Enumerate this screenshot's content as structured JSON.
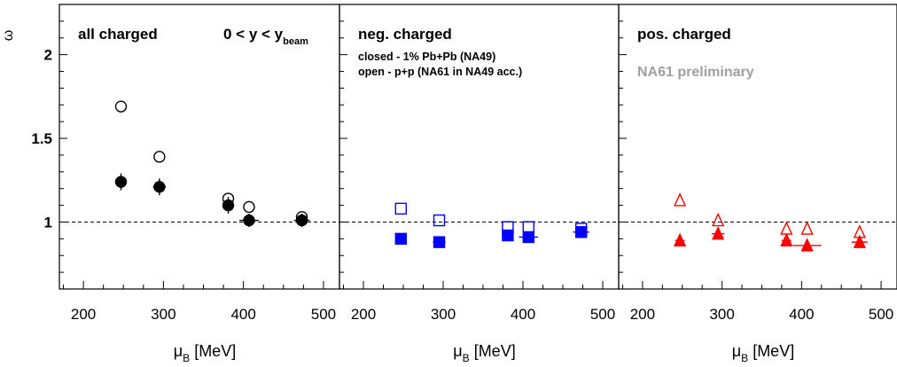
{
  "figure": {
    "y_axis_label": "ω",
    "colors": {
      "black": "#000000",
      "blue": "#0000ff",
      "red": "#ff0000",
      "gray": "#a0a0a0"
    }
  },
  "chart_data": [
    {
      "type": "scatter",
      "title": "all charged",
      "annotation": {
        "main": "0 < y < y",
        "sub": "beam"
      },
      "xlabel": {
        "main": "μ",
        "sub": "B",
        "unit": " [MeV]"
      },
      "ylabel": "ω",
      "xlim": [
        170,
        520
      ],
      "ylim": [
        0.6,
        2.3
      ],
      "xticks": [
        200,
        300,
        400,
        500
      ],
      "yticks": [
        1,
        1.5,
        2
      ],
      "reference_line": 1,
      "marker": "circle",
      "color": "#000000",
      "series": [
        {
          "filled": true,
          "points": [
            {
              "x": 247,
              "y": 1.24,
              "xerr": 6,
              "yerr": 0.05
            },
            {
              "x": 295,
              "y": 1.21,
              "xerr": 8,
              "yerr": 0.05
            },
            {
              "x": 381,
              "y": 1.1,
              "xerr": 4,
              "yerr": 0.05
            },
            {
              "x": 407,
              "y": 1.01,
              "xerr": 12,
              "yerr": 0.04
            },
            {
              "x": 473,
              "y": 1.01,
              "xerr": 10,
              "yerr": 0.04
            }
          ]
        },
        {
          "filled": false,
          "points": [
            {
              "x": 247,
              "y": 1.69
            },
            {
              "x": 295,
              "y": 1.39
            },
            {
              "x": 381,
              "y": 1.14
            },
            {
              "x": 407,
              "y": 1.09
            },
            {
              "x": 473,
              "y": 1.03
            }
          ]
        }
      ]
    },
    {
      "type": "scatter",
      "title": "neg. charged",
      "legend": [
        "closed - 1% Pb+Pb (NA49)",
        "open - p+p (NA61 in NA49 acc.)"
      ],
      "xlabel": {
        "main": "μ",
        "sub": "B",
        "unit": " [MeV]"
      },
      "xlim": [
        170,
        520
      ],
      "ylim": [
        0.6,
        2.3
      ],
      "xticks": [
        200,
        300,
        400,
        500
      ],
      "reference_line": 1,
      "marker": "square",
      "color": "#0000ff",
      "series": [
        {
          "filled": true,
          "points": [
            {
              "x": 247,
              "y": 0.9,
              "xerr": 6,
              "yerr": 0.02
            },
            {
              "x": 295,
              "y": 0.88,
              "xerr": 8,
              "yerr": 0.02
            },
            {
              "x": 381,
              "y": 0.92,
              "xerr": 6,
              "yerr": 0.02
            },
            {
              "x": 407,
              "y": 0.91,
              "xerr": 12,
              "yerr": 0.02
            },
            {
              "x": 473,
              "y": 0.94,
              "xerr": 10,
              "yerr": 0.02
            }
          ]
        },
        {
          "filled": false,
          "points": [
            {
              "x": 247,
              "y": 1.08
            },
            {
              "x": 295,
              "y": 1.01
            },
            {
              "x": 381,
              "y": 0.97
            },
            {
              "x": 407,
              "y": 0.97
            },
            {
              "x": 473,
              "y": 0.96
            }
          ]
        }
      ]
    },
    {
      "type": "scatter",
      "title": "pos. charged",
      "watermark": "NA61 preliminary",
      "xlabel": {
        "main": "μ",
        "sub": "B",
        "unit": " [MeV]"
      },
      "xlim": [
        170,
        520
      ],
      "ylim": [
        0.6,
        2.3
      ],
      "xticks": [
        200,
        300,
        400,
        500
      ],
      "reference_line": 1,
      "marker": "triangle",
      "color": "#ff0000",
      "series": [
        {
          "filled": true,
          "points": [
            {
              "x": 247,
              "y": 0.89,
              "xerr": 6,
              "yerr": 0.02
            },
            {
              "x": 295,
              "y": 0.93,
              "xerr": 8,
              "yerr": 0.02
            },
            {
              "x": 381,
              "y": 0.89,
              "xerr": 6,
              "yerr": 0.02
            },
            {
              "x": 407,
              "y": 0.86,
              "xerr": 18,
              "yerr": 0.02
            },
            {
              "x": 473,
              "y": 0.88,
              "xerr": 10,
              "yerr": 0.02
            }
          ]
        },
        {
          "filled": false,
          "points": [
            {
              "x": 247,
              "y": 1.13
            },
            {
              "x": 295,
              "y": 1.01
            },
            {
              "x": 381,
              "y": 0.96
            },
            {
              "x": 407,
              "y": 0.96
            },
            {
              "x": 473,
              "y": 0.94
            }
          ]
        }
      ]
    }
  ]
}
